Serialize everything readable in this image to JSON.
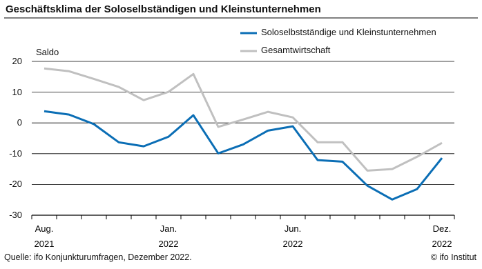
{
  "chart_data": {
    "type": "line",
    "title": "Geschäftsklima der Soloselbständigen und Kleinstunternehmen",
    "y_label": "Saldo",
    "categories": [
      "Aug. 2021",
      null,
      null,
      null,
      null,
      "Jan. 2022",
      null,
      null,
      null,
      null,
      "Jun. 2022",
      null,
      null,
      null,
      null,
      null,
      "Dez. 2022"
    ],
    "series": [
      {
        "name": "Soloselbstständige und Kleinstunternehmen",
        "color": "#0b6eb5",
        "values": [
          3.8,
          2.7,
          -0.4,
          -6.3,
          -7.6,
          -4.5,
          2.5,
          -9.9,
          -7,
          -2.5,
          -1.1,
          -12.1,
          -12.6,
          -20.4,
          -24.9,
          -21.5,
          -11.4
        ]
      },
      {
        "name": "Gesamtwirtschaft",
        "color": "#c0c0c0",
        "values": [
          17.7,
          16.8,
          14.3,
          11.7,
          7.4,
          10.1,
          15.9,
          -1.3,
          1.1,
          3.6,
          1.8,
          -6.3,
          -6.3,
          -15.5,
          -15,
          -11,
          -6.5
        ]
      }
    ],
    "ylim": [
      -30,
      20
    ],
    "yticks": [
      -30,
      -20,
      -10,
      0,
      10,
      20
    ],
    "grid": true,
    "source": "Quelle: ifo Konjunkturumfragen, Dezember 2022.",
    "credit": "© ifo Institut"
  }
}
